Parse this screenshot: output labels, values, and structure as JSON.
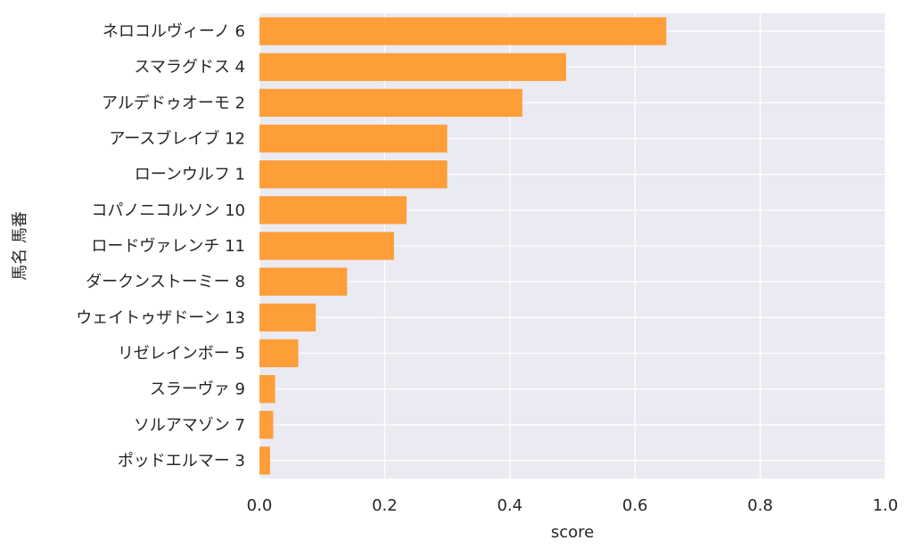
{
  "chart_data": {
    "type": "bar",
    "orientation": "horizontal",
    "title": "",
    "xlabel": "score",
    "ylabel": "馬名 馬番",
    "xlim": [
      0.0,
      1.0
    ],
    "xticks": [
      "0.0",
      "0.2",
      "0.4",
      "0.6",
      "0.8",
      "1.0"
    ],
    "grid": true,
    "colors": {
      "bar": "#ff9a2e",
      "plot_background": "#eaeaf2",
      "grid": "#ffffff"
    },
    "categories": [
      "ネロコルヴィーノ 6",
      "スマラグドス 4",
      "アルデドゥオーモ 2",
      "アースブレイブ 12",
      "ローンウルフ 1",
      "コパノニコルソン 10",
      "ロードヴァレンチ 11",
      "ダークンストーミー 8",
      "ウェイトゥザドーン 13",
      "リゼレインボー 5",
      "スラーヴァ 9",
      "ソルアマゾン 7",
      "ポッドエルマー 3"
    ],
    "values": [
      0.65,
      0.49,
      0.42,
      0.3,
      0.3,
      0.235,
      0.215,
      0.14,
      0.09,
      0.062,
      0.025,
      0.022,
      0.017
    ]
  }
}
